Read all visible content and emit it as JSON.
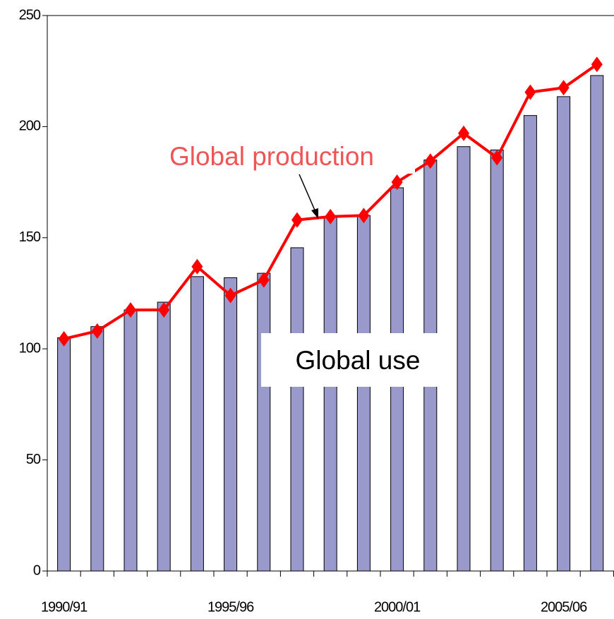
{
  "chart_data": {
    "type": "bar",
    "categories": [
      "1990/91",
      null,
      null,
      null,
      null,
      "1995/96",
      null,
      null,
      null,
      null,
      "2000/01",
      null,
      null,
      null,
      null,
      "2005/06",
      null
    ],
    "series": [
      {
        "name": "Global use",
        "type": "bar",
        "color": "#9999cc",
        "values": [
          105,
          110,
          117.5,
          121,
          132.5,
          132,
          134,
          145.5,
          159.5,
          160,
          172.5,
          185,
          191,
          189.5,
          205,
          213.5,
          223
        ]
      },
      {
        "name": "Global production",
        "type": "line",
        "color": "#ff0000",
        "values": [
          104.5,
          108,
          117.5,
          117.5,
          137,
          124,
          131,
          158,
          159.5,
          160,
          175,
          184.5,
          197,
          186,
          215.5,
          217.5,
          228
        ]
      }
    ],
    "ylim": [
      0,
      250
    ],
    "yticks": [
      0,
      50,
      100,
      150,
      200,
      250
    ]
  }
}
